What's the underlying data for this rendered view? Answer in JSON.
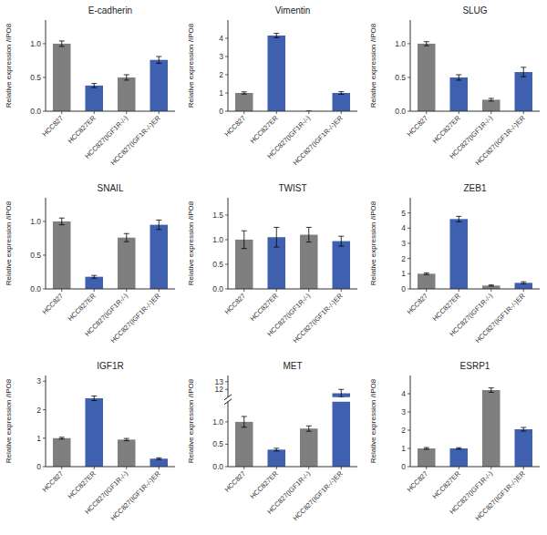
{
  "chart_data": [
    {
      "type": "bar",
      "title": "E-cadherin",
      "ylabel": "Relative expression /IPO8",
      "categories": [
        "HCC827",
        "HCC827ER",
        "HCC827(IGF1R-/-)",
        "HCC827(IGF1R-/-)ER"
      ],
      "colors": [
        "#7f7f7f",
        "#3f5faf",
        "#7f7f7f",
        "#3f5faf"
      ],
      "values": [
        1.0,
        0.38,
        0.5,
        0.76
      ],
      "errors": [
        0.04,
        0.03,
        0.04,
        0.05
      ],
      "ylim": [
        0,
        1.35
      ],
      "yticks": [
        {
          "value": 0,
          "label": "0.0"
        },
        0.5,
        {
          "value": 1,
          "label": "1.0"
        }
      ]
    },
    {
      "type": "bar",
      "title": "Vimentin",
      "ylabel": "Relative expression /IPO8",
      "categories": [
        "HCC827",
        "HCC827ER",
        "HCC827(IGF1R-/-)",
        "HCC827(IGF1R-/-)ER"
      ],
      "colors": [
        "#7f7f7f",
        "#3f5faf",
        "#7f7f7f",
        "#3f5faf"
      ],
      "values": [
        1.0,
        4.15,
        0.0,
        1.0
      ],
      "errors": [
        0.06,
        0.12,
        0.0,
        0.07
      ],
      "ylim": [
        0,
        5.0
      ],
      "yticks": [
        0,
        1,
        2,
        3,
        4
      ]
    },
    {
      "type": "bar",
      "title": "SLUG",
      "ylabel": "Relative expression /IPO8",
      "categories": [
        "HCC827",
        "HCC827ER",
        "HCC827(IGF1R-/-)",
        "HCC827(IGF1R-/-)ER"
      ],
      "colors": [
        "#7f7f7f",
        "#3f5faf",
        "#7f7f7f",
        "#3f5faf"
      ],
      "values": [
        1.0,
        0.5,
        0.17,
        0.58
      ],
      "errors": [
        0.03,
        0.04,
        0.02,
        0.07
      ],
      "ylim": [
        0,
        1.35
      ],
      "yticks": [
        {
          "value": 0,
          "label": "0.0"
        },
        0.5,
        {
          "value": 1,
          "label": "1.0"
        }
      ]
    },
    {
      "type": "bar",
      "title": "SNAIL",
      "ylabel": "Relative expression /IPO8",
      "categories": [
        "HCC827",
        "HCC827ER",
        "HCC827(IGF1R-/-)",
        "HCC827(IGF1R-/-)ER"
      ],
      "colors": [
        "#7f7f7f",
        "#3f5faf",
        "#7f7f7f",
        "#3f5faf"
      ],
      "values": [
        1.0,
        0.18,
        0.76,
        0.95
      ],
      "errors": [
        0.05,
        0.02,
        0.06,
        0.07
      ],
      "ylim": [
        0,
        1.35
      ],
      "yticks": [
        {
          "value": 0,
          "label": "0.0"
        },
        0.5,
        {
          "value": 1,
          "label": "1.0"
        }
      ]
    },
    {
      "type": "bar",
      "title": "TWIST",
      "ylabel": "Relative expression /IPO8",
      "categories": [
        "HCC827",
        "HCC827ER",
        "HCC827(IGF1R-/-)",
        "HCC827(IGF1R-/-)ER"
      ],
      "colors": [
        "#7f7f7f",
        "#3f5faf",
        "#7f7f7f",
        "#3f5faf"
      ],
      "values": [
        1.0,
        1.05,
        1.1,
        0.97
      ],
      "errors": [
        0.18,
        0.2,
        0.15,
        0.1
      ],
      "ylim": [
        0,
        1.85
      ],
      "yticks": [
        {
          "value": 0,
          "label": "0.0"
        },
        0.5,
        {
          "value": 1,
          "label": "1.0"
        },
        1.5
      ]
    },
    {
      "type": "bar",
      "title": "ZEB1",
      "ylabel": "Relative expression /IPO8",
      "categories": [
        "HCC827",
        "HCC827ER",
        "HCC827(IGF1R-/-)",
        "HCC827(IGF1R-/-)ER"
      ],
      "colors": [
        "#7f7f7f",
        "#3f5faf",
        "#7f7f7f",
        "#3f5faf"
      ],
      "values": [
        1.0,
        4.6,
        0.22,
        0.4
      ],
      "errors": [
        0.06,
        0.18,
        0.04,
        0.07
      ],
      "ylim": [
        0,
        6.0
      ],
      "yticks": [
        0,
        1,
        2,
        3,
        4,
        5
      ]
    },
    {
      "type": "bar",
      "title": "IGF1R",
      "ylabel": "Relative expression /IPO8",
      "categories": [
        "HCC827",
        "HCC827ER",
        "HCC827(IGF1R-/-)",
        "HCC827(IGF1R-/-)ER"
      ],
      "colors": [
        "#7f7f7f",
        "#3f5faf",
        "#7f7f7f",
        "#3f5faf"
      ],
      "values": [
        1.0,
        2.4,
        0.95,
        0.28
      ],
      "errors": [
        0.03,
        0.08,
        0.04,
        0.03
      ],
      "ylim": [
        0,
        3.2
      ],
      "yticks": [
        0,
        1,
        2,
        3
      ]
    },
    {
      "type": "bar",
      "title": "MET",
      "ylabel": "Relative expression /IPO8",
      "categories": [
        "HCC827",
        "HCC827ER",
        "HCC827(IGF1R-/-)",
        "HCC827(IGF1R-/-)ER"
      ],
      "colors": [
        "#7f7f7f",
        "#3f5faf",
        "#7f7f7f",
        "#3f5faf"
      ],
      "values": [
        1.0,
        0.38,
        0.85,
        11.5
      ],
      "errors": [
        0.12,
        0.03,
        0.06,
        0.5
      ],
      "ylim": [
        [
          0,
          1.45
        ],
        [
          11.0,
          13.8
        ]
      ],
      "yticks": [
        [
          {
            "value": 0,
            "label": "0.0"
          },
          0.5,
          {
            "value": 1,
            "label": "1.0"
          }
        ],
        [
          12,
          13
        ]
      ]
    },
    {
      "type": "bar",
      "title": "ESRP1",
      "ylabel": "Relative expression /IPO8",
      "categories": [
        "HCC827",
        "HCC827ER",
        "HCC827(IGF1R-/-)",
        "HCC827(IGF1R-/-)ER"
      ],
      "colors": [
        "#7f7f7f",
        "#3f5faf",
        "#7f7f7f",
        "#3f5faf"
      ],
      "values": [
        1.0,
        1.0,
        4.2,
        2.05
      ],
      "errors": [
        0.05,
        0.04,
        0.12,
        0.1
      ],
      "ylim": [
        0,
        5.0
      ],
      "yticks": [
        0,
        1,
        2,
        3,
        4
      ]
    }
  ]
}
